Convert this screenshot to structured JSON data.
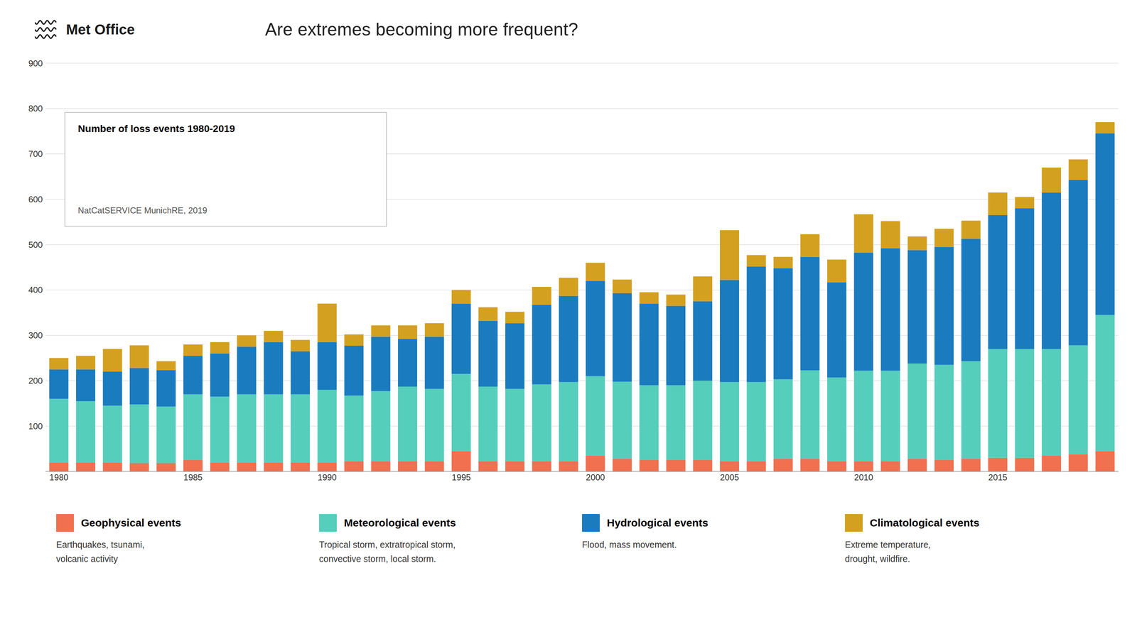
{
  "chart_data": {
    "type": "bar",
    "title": "Are extremes becoming more frequent?",
    "subtitle": "Number of loss events 1980-2019",
    "annotations": [
      "Met Office",
      "NatCatSERVICE MunichRE, 2019",
      "Earthquakes, tsunami,\nvolcanic activity",
      "Tropical storm, extratropical storm,\nconvective storm, local storm.",
      "Flood, mass movement.",
      "Extreme temperature,\ndrought, wildfire."
    ],
    "categories": [
      "1980",
      null,
      null,
      null,
      null,
      "1985",
      null,
      null,
      null,
      null,
      "1990",
      null,
      null,
      null,
      null,
      "1995",
      null,
      null,
      null,
      null,
      "2000",
      null,
      null,
      null,
      null,
      "2005",
      null,
      null,
      null,
      null,
      "2010",
      null,
      null,
      null,
      null,
      "2015",
      null,
      null,
      null,
      null
    ],
    "series": [
      {
        "name": "Geophysical events",
        "color": "#f07050",
        "values": [
          20,
          20,
          20,
          18,
          18,
          25,
          20,
          20,
          20,
          20,
          20,
          22,
          22,
          22,
          22,
          45,
          22,
          22,
          22,
          22,
          35,
          28,
          25,
          25,
          25,
          22,
          22,
          28,
          28,
          22,
          22,
          22,
          28,
          25,
          28,
          30,
          30,
          35,
          38,
          45
        ]
      },
      {
        "name": "Meteorological events",
        "color": "#55cebb",
        "values": [
          140,
          135,
          125,
          130,
          125,
          145,
          145,
          150,
          150,
          150,
          160,
          145,
          155,
          165,
          160,
          170,
          165,
          160,
          170,
          175,
          175,
          170,
          165,
          165,
          175,
          175,
          175,
          175,
          195,
          185,
          200,
          200,
          210,
          210,
          215,
          240,
          240,
          235,
          240,
          300
        ]
      },
      {
        "name": "Hydrological events",
        "color": "#1a7bbf",
        "values": [
          65,
          70,
          75,
          80,
          80,
          85,
          95,
          105,
          115,
          95,
          105,
          110,
          120,
          105,
          115,
          155,
          145,
          145,
          175,
          190,
          210,
          195,
          180,
          175,
          175,
          225,
          255,
          245,
          250,
          210,
          260,
          270,
          250,
          260,
          270,
          295,
          310,
          345,
          365,
          400
        ]
      },
      {
        "name": "Climatological events",
        "color": "#d4a020",
        "values": [
          25,
          30,
          50,
          50,
          20,
          25,
          25,
          25,
          25,
          25,
          85,
          25,
          25,
          30,
          30,
          30,
          30,
          25,
          40,
          40,
          40,
          30,
          25,
          25,
          55,
          110,
          25,
          25,
          50,
          50,
          85,
          60,
          30,
          40,
          40,
          50,
          25,
          55,
          45,
          25
        ]
      }
    ],
    "ylim": [
      0,
      900
    ],
    "yticks": [
      100,
      200,
      300,
      400,
      500,
      600,
      700,
      800,
      900
    ],
    "grid": true,
    "stacked": true,
    "legend": "bottom"
  }
}
